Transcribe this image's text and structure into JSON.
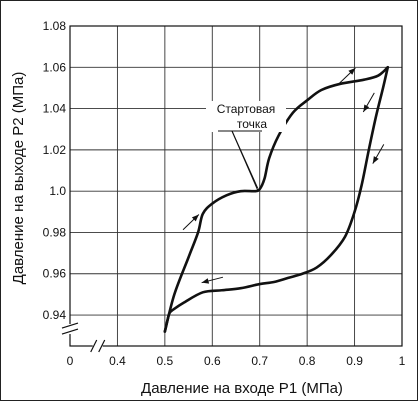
{
  "chart_data": {
    "type": "line",
    "xlabel": "Давление на входе P1 (МПа)",
    "ylabel": "Давление на выходе P2 (МПа)",
    "xlim": [
      0.3,
      1.0
    ],
    "ylim": [
      0.925,
      1.08
    ],
    "grid": true,
    "x_ticks": [
      {
        "v": 0.4,
        "label": "0.4"
      },
      {
        "v": 0.5,
        "label": "0.5"
      },
      {
        "v": 0.6,
        "label": "0.6"
      },
      {
        "v": 0.7,
        "label": "0.7"
      },
      {
        "v": 0.8,
        "label": "0.8"
      },
      {
        "v": 0.9,
        "label": "0.9"
      },
      {
        "v": 1.0,
        "label": "1"
      }
    ],
    "x_origin_label": "0",
    "y_ticks": [
      {
        "v": 0.94,
        "label": "0.94"
      },
      {
        "v": 0.96,
        "label": "0.96"
      },
      {
        "v": 0.98,
        "label": "0.98"
      },
      {
        "v": 1.0,
        "label": "1.0"
      },
      {
        "v": 1.02,
        "label": "1.02"
      },
      {
        "v": 1.04,
        "label": "1.04"
      },
      {
        "v": 1.06,
        "label": "1.06"
      },
      {
        "v": 1.08,
        "label": "1.08"
      }
    ],
    "series": [
      {
        "x": [
          0.5,
          0.52,
          0.55,
          0.57,
          0.58,
          0.6,
          0.63,
          0.66,
          0.69,
          0.7,
          0.71,
          0.72,
          0.74,
          0.77,
          0.8,
          0.83,
          0.87,
          0.92,
          0.95,
          0.97
        ],
        "y": [
          0.932,
          0.95,
          0.968,
          0.98,
          0.989,
          0.994,
          0.998,
          1.0,
          1.0,
          1.001,
          1.006,
          1.016,
          1.027,
          1.038,
          1.044,
          1.049,
          1.052,
          1.054,
          1.056,
          1.06
        ]
      },
      {
        "x": [
          0.97,
          0.96,
          0.945,
          0.93,
          0.915,
          0.9,
          0.88,
          0.85,
          0.82,
          0.79,
          0.76,
          0.73,
          0.7,
          0.66,
          0.62,
          0.58,
          0.54,
          0.52,
          0.51,
          0.505,
          0.5
        ],
        "y": [
          1.06,
          1.05,
          1.036,
          1.02,
          1.003,
          0.99,
          0.978,
          0.969,
          0.963,
          0.96,
          0.958,
          0.956,
          0.955,
          0.953,
          0.952,
          0.951,
          0.946,
          0.943,
          0.941,
          0.937,
          0.932
        ]
      }
    ],
    "annotation": {
      "lines": [
        "Стартовая",
        "точка"
      ],
      "point": {
        "x": 0.7,
        "y": 1.0
      }
    },
    "direction_arrows": [
      {
        "x": 0.885,
        "y": 1.056,
        "dir": "up-right"
      },
      {
        "x": 0.93,
        "y": 1.043,
        "dir": "down-left"
      },
      {
        "x": 0.95,
        "y": 1.018,
        "dir": "down-left"
      },
      {
        "x": 0.555,
        "y": 0.985,
        "dir": "up-right"
      },
      {
        "x": 0.6,
        "y": 0.957,
        "dir": "left"
      }
    ]
  }
}
